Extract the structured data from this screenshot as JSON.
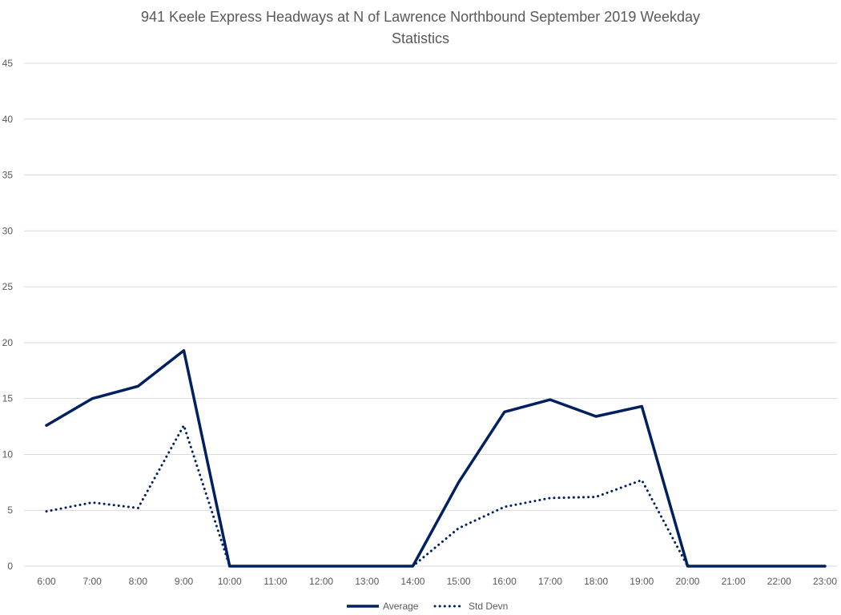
{
  "chart_data": {
    "type": "line",
    "title_lines": [
      "941 Keele Express Headways at N of Lawrence Northbound September 2019 Weekday",
      "Statistics"
    ],
    "categories": [
      "6:00",
      "7:00",
      "8:00",
      "9:00",
      "10:00",
      "11:00",
      "12:00",
      "13:00",
      "14:00",
      "15:00",
      "16:00",
      "17:00",
      "18:00",
      "19:00",
      "20:00",
      "21:00",
      "22:00",
      "23:00"
    ],
    "series": [
      {
        "name": "Average",
        "style": "solid",
        "color": "#002060",
        "values": [
          12.6,
          15.0,
          16.1,
          19.3,
          0,
          0,
          0,
          0,
          0,
          7.5,
          13.8,
          14.9,
          13.4,
          14.3,
          0,
          0,
          0,
          0
        ]
      },
      {
        "name": "Std Devn",
        "style": "dotted",
        "color": "#002060",
        "values": [
          4.9,
          5.7,
          5.2,
          12.6,
          0,
          0,
          0,
          0,
          0,
          3.4,
          5.3,
          6.1,
          6.2,
          7.7,
          0,
          0,
          0,
          0
        ]
      }
    ],
    "y_ticks": [
      "0",
      "5",
      "10",
      "15",
      "20",
      "25",
      "30",
      "35",
      "40",
      "45"
    ],
    "ylim": [
      0,
      45
    ],
    "y_step": 5,
    "xlabel": "",
    "ylabel": "",
    "grid": true,
    "legend_position": "bottom"
  }
}
